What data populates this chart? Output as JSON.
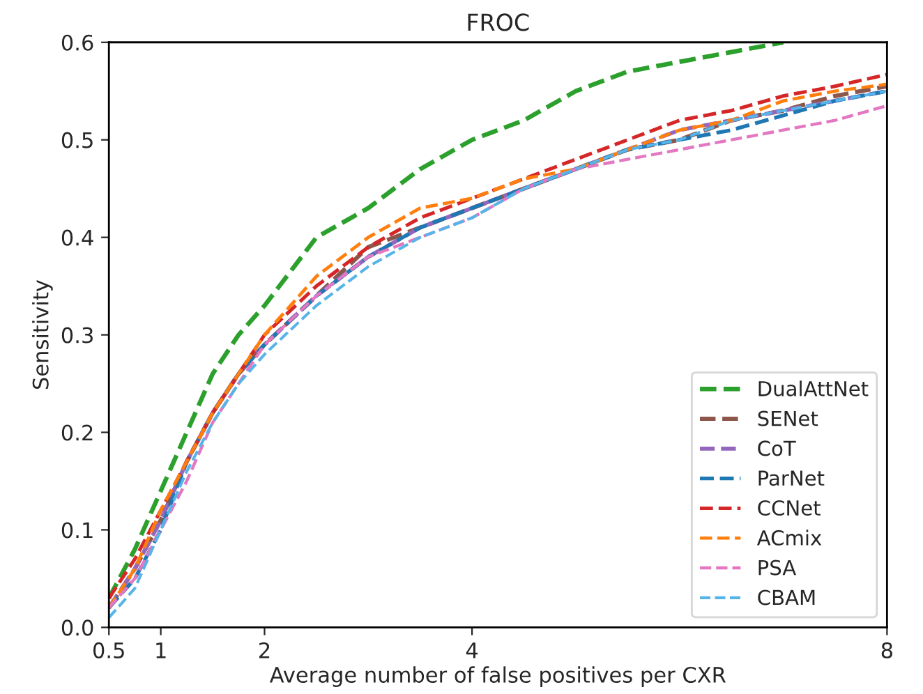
{
  "chart_data": {
    "type": "line",
    "title": "FROC",
    "xlabel": "Average number of false positives per CXR",
    "ylabel": "Sensitivity",
    "xlim": [
      0.5,
      8
    ],
    "xticks": [
      0.5,
      1,
      2,
      4,
      8
    ],
    "ylim": [
      0,
      0.6
    ],
    "yticks": [
      {
        "value": 0,
        "label": "0.0"
      },
      0.1,
      0.2,
      0.3,
      0.4,
      0.5,
      0.6
    ],
    "grid": false,
    "legend": "bottom right",
    "line_style": "dashed",
    "marker": "none",
    "x": [
      0.5,
      0.75,
      1,
      1.25,
      1.5,
      1.75,
      2,
      2.5,
      3,
      3.5,
      4,
      4.5,
      5,
      5.5,
      6,
      6.5,
      7,
      7.5,
      8
    ],
    "series": [
      {
        "name": "DualAttNet",
        "color": "#2ca02c",
        "values": [
          0.03,
          0.08,
          0.14,
          0.2,
          0.26,
          0.3,
          0.33,
          0.4,
          0.43,
          0.47,
          0.5,
          0.52,
          0.55,
          0.57,
          0.58,
          0.59,
          0.6,
          null,
          null
        ]
      },
      {
        "name": "SENet",
        "color": "#8c564b",
        "values": [
          0.02,
          0.06,
          0.11,
          0.17,
          0.22,
          0.26,
          0.29,
          0.34,
          0.39,
          0.41,
          0.43,
          0.45,
          0.47,
          0.49,
          0.5,
          0.52,
          0.53,
          0.545,
          0.555
        ]
      },
      {
        "name": "CoT",
        "color": "#9467bd",
        "values": [
          0.02,
          0.06,
          0.11,
          0.17,
          0.22,
          0.26,
          0.29,
          0.34,
          0.38,
          0.41,
          0.43,
          0.45,
          0.47,
          0.49,
          0.51,
          0.52,
          0.53,
          0.54,
          0.55
        ]
      },
      {
        "name": "ParNet",
        "color": "#1f77b4",
        "values": [
          0.02,
          0.05,
          0.1,
          0.17,
          0.22,
          0.26,
          0.29,
          0.34,
          0.38,
          0.41,
          0.43,
          0.45,
          0.47,
          0.49,
          0.5,
          0.51,
          0.525,
          0.54,
          0.55
        ]
      },
      {
        "name": "CCNet",
        "color": "#d62728",
        "values": [
          0.03,
          0.07,
          0.12,
          0.17,
          0.22,
          0.26,
          0.3,
          0.35,
          0.39,
          0.42,
          0.44,
          0.46,
          0.48,
          0.5,
          0.52,
          0.53,
          0.545,
          0.555,
          0.567
        ]
      },
      {
        "name": "ACmix",
        "color": "#ff7f0e",
        "values": [
          0.02,
          0.06,
          0.12,
          0.17,
          0.22,
          0.26,
          0.3,
          0.36,
          0.4,
          0.43,
          0.44,
          0.46,
          0.47,
          0.49,
          0.51,
          0.52,
          0.54,
          0.55,
          0.557
        ]
      },
      {
        "name": "PSA",
        "color": "#e377c2",
        "values": [
          0.02,
          0.05,
          0.1,
          0.15,
          0.21,
          0.25,
          0.29,
          0.34,
          0.38,
          0.4,
          0.42,
          0.45,
          0.47,
          0.48,
          0.49,
          0.5,
          0.51,
          0.52,
          0.535
        ]
      },
      {
        "name": "CBAM",
        "color": "#56b4e9",
        "values": [
          0.01,
          0.04,
          0.1,
          0.16,
          0.21,
          0.25,
          0.28,
          0.33,
          0.37,
          0.4,
          0.42,
          0.45,
          0.47,
          0.49,
          0.5,
          0.52,
          0.53,
          0.54,
          0.55
        ]
      }
    ]
  }
}
